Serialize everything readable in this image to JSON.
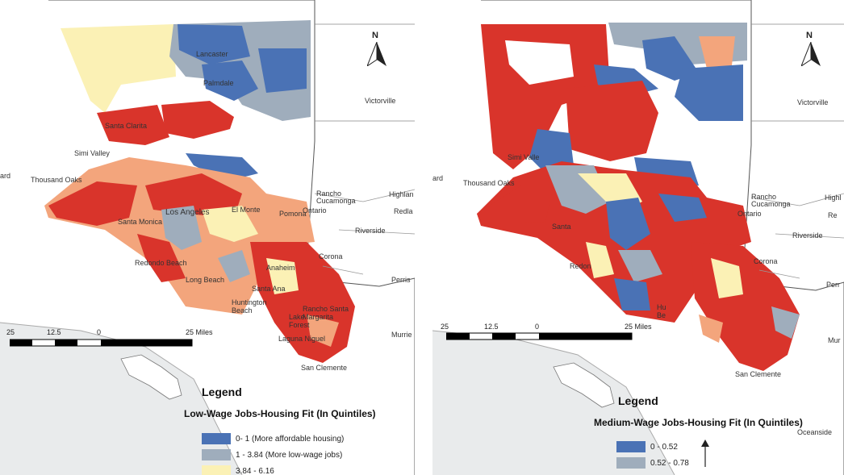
{
  "colors": {
    "quintile1": "#4a72b5",
    "quintile2": "#9fadbc",
    "quintile3": "#fbf1b5",
    "quintile4": "#f3a57c",
    "quintile5": "#d9342b",
    "ocean": "#e9ebec",
    "land": "#ffffff"
  },
  "left_map": {
    "north_label": "N",
    "places": {
      "lancaster": "Lancaster",
      "palmdale": "Palmdale",
      "victorville": "Victorville",
      "santa_clarita": "Santa Clarita",
      "simi_valley": "Simi Valley",
      "thousand_oaks": "Thousand Oaks",
      "ard": "ard",
      "rancho_cucamonga": "Rancho\nCucamonga",
      "ontario": "Ontario",
      "highland": "Highlan",
      "redlands": "Redla",
      "riverside": "Riverside",
      "el_monte": "El Monte",
      "pomona": "Pomona",
      "los_angeles": "Los Angeles",
      "santa_monica": "Santa Monica",
      "corona": "Corona",
      "redondo_beach": "Redondo Beach",
      "anaheim": "Anaheim",
      "perris": "Perris",
      "long_beach": "Long Beach",
      "santa_ana": "Santa Ana",
      "huntington_beach": "Huntington\nBeach",
      "rancho_santa_margarita": "Rancho Santa\nMargarita",
      "lake_forest": "Lake\nForest",
      "laguna_niguel": "Laguna Niguel",
      "murrieta": "Murrie",
      "san_clemente": "San Clemente"
    },
    "scale": {
      "t1": "25",
      "t2": "12.5",
      "t3": "0",
      "t4": "25 Miles"
    },
    "legend": {
      "title": "Legend",
      "subtitle": "Low-Wage Jobs-Housing Fit (In Quintiles)",
      "items": [
        {
          "label": "0- 1 (More affordable housing)",
          "color": "#4a72b5"
        },
        {
          "label": "1 - 3.84 (More low-wage jobs)",
          "color": "#9fadbc"
        },
        {
          "label": "3.84 - 6.16",
          "color": "#fbf1b5"
        }
      ]
    }
  },
  "right_map": {
    "north_label": "N",
    "places": {
      "victorville": "Victorville",
      "simi_valley": "Simi Valle",
      "thousand_oaks": "Thousand Oaks",
      "ard": "ard",
      "rancho_cucamonga": "Rancho\nCucamonga",
      "ontario": "Ontario",
      "highland": "Highl",
      "redlands": "Re",
      "riverside": "Riverside",
      "santa_monica": "Santa",
      "corona": "Corona",
      "redondo": "Redon",
      "perris": "Perr",
      "huntington_beach": "Hu\nBe",
      "murrieta": "Mur",
      "san_clemente": "San Clemente",
      "oceanside": "Oceanside"
    },
    "scale": {
      "t1": "25",
      "t2": "12.5",
      "t3": "0",
      "t4": "25 Miles"
    },
    "legend": {
      "title": "Legend",
      "subtitle": "Medium-Wage Jobs-Housing Fit (In Quintiles)",
      "items": [
        {
          "label": "0 - 0.52",
          "color": "#4a72b5"
        },
        {
          "label": "0.52 - 0.78",
          "color": "#9fadbc"
        }
      ]
    }
  }
}
